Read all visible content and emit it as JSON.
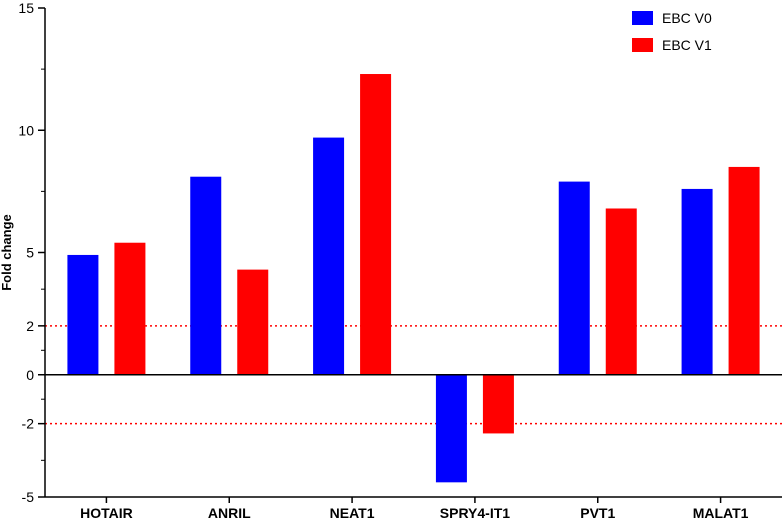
{
  "chart_data": {
    "type": "bar",
    "ylabel": "Fold change",
    "ylim": [
      -5,
      15
    ],
    "y_ticks": [
      {
        "value": 15,
        "label": "15"
      },
      {
        "value": 10,
        "label": "10"
      },
      {
        "value": 5,
        "label": "5"
      },
      {
        "value": 2,
        "label": "2"
      },
      {
        "value": 0,
        "label": "0"
      },
      {
        "value": -2,
        "label": "-2"
      },
      {
        "value": -5,
        "label": "-5"
      }
    ],
    "minor_ticks": [
      12.5,
      7.5,
      3.5,
      1,
      -1,
      -3.5
    ],
    "categories": [
      "HOTAIR",
      "ANRIL",
      "NEAT1",
      "SPRY4-IT1",
      "PVT1",
      "MALAT1"
    ],
    "series": [
      {
        "name": "EBC V0",
        "color": "#0000ff",
        "values": [
          4.9,
          8.1,
          9.7,
          -4.4,
          7.9,
          7.6
        ]
      },
      {
        "name": "EBC V1",
        "color": "#ff0000",
        "values": [
          5.4,
          4.3,
          12.3,
          -2.4,
          6.8,
          8.5
        ]
      }
    ],
    "reference_lines": [
      2,
      -2
    ],
    "reference_line_color": "#ff0000",
    "grid": false,
    "legend_position": "top-right"
  }
}
